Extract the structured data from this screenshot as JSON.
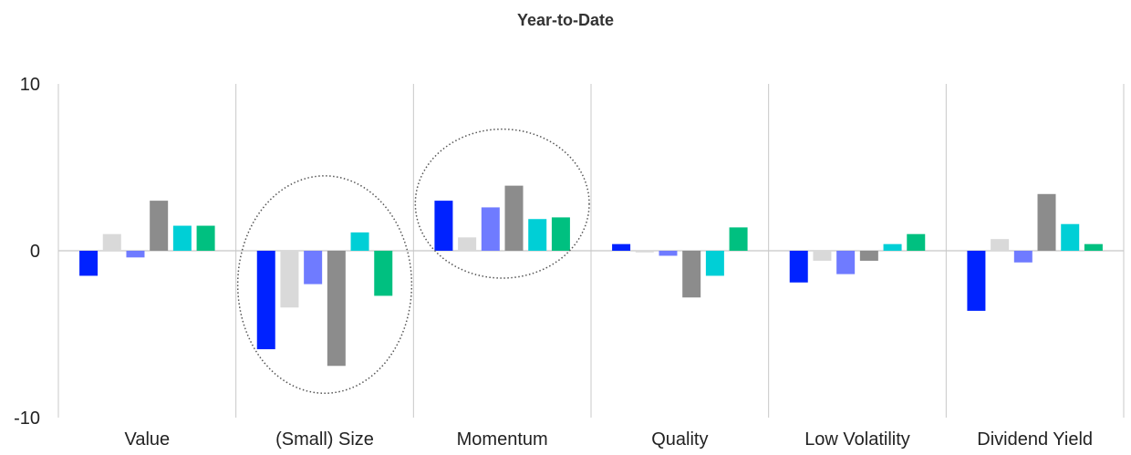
{
  "chart_data": {
    "type": "bar",
    "title": "Year-to-Date",
    "categories": [
      "Value",
      "(Small) Size",
      "Momentum",
      "Quality",
      "Low Volatility",
      "Dividend Yield"
    ],
    "ylim": [
      -10,
      10
    ],
    "yticks": [
      10,
      0,
      -10
    ],
    "grid": false,
    "legend": "none",
    "series_colors": [
      "#0022ff",
      "#d9d9d9",
      "#6f7bff",
      "#8c8c8c",
      "#00cfd6",
      "#00c080"
    ],
    "series": [
      {
        "values": [
          -1.5,
          -5.9,
          3.0,
          0.4,
          -1.9,
          -3.6
        ]
      },
      {
        "values": [
          1.0,
          -3.4,
          0.8,
          -0.1,
          -0.6,
          0.7
        ]
      },
      {
        "values": [
          -0.4,
          -2.0,
          2.6,
          -0.3,
          -1.4,
          -0.7
        ]
      },
      {
        "values": [
          3.0,
          -6.9,
          3.9,
          -2.8,
          -0.6,
          3.4
        ]
      },
      {
        "values": [
          1.5,
          1.1,
          1.9,
          -1.5,
          0.4,
          1.6
        ]
      },
      {
        "values": [
          1.5,
          -2.7,
          2.0,
          1.4,
          1.0,
          0.4
        ]
      }
    ],
    "highlighted_categories": [
      "(Small) Size",
      "Momentum"
    ]
  }
}
